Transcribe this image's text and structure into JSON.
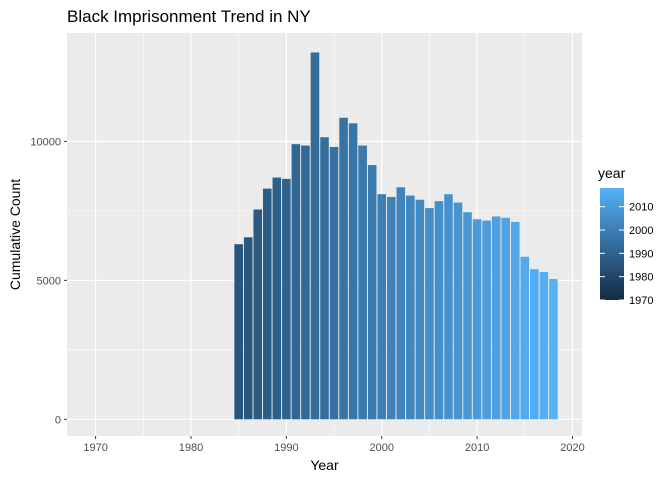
{
  "chart_data": {
    "type": "bar",
    "title": "Black Imprisonment Trend in NY",
    "xlabel": "Year",
    "ylabel": "Cumulative Count",
    "xlim": [
      1967,
      2021
    ],
    "ylim": [
      -600,
      13900
    ],
    "x_ticks": [
      1970,
      1980,
      1990,
      2000,
      2010,
      2020
    ],
    "y_ticks": [
      0,
      5000,
      10000
    ],
    "y_tick_labels": [
      "0",
      "5000",
      "10000"
    ],
    "grid": true,
    "panel_background": "#ebebeb",
    "legend": {
      "title": "year",
      "position": "right",
      "range": [
        1970,
        2018
      ],
      "ticks": [
        1970,
        1980,
        1990,
        2000,
        2010
      ],
      "color_low": "#132b43",
      "color_high": "#56b1f7"
    },
    "x": [
      1985,
      1986,
      1987,
      1988,
      1989,
      1990,
      1991,
      1992,
      1993,
      1994,
      1995,
      1996,
      1997,
      1998,
      1999,
      2000,
      2001,
      2002,
      2003,
      2004,
      2005,
      2006,
      2007,
      2008,
      2009,
      2010,
      2011,
      2012,
      2013,
      2014,
      2015,
      2016,
      2017,
      2018
    ],
    "values": [
      6300,
      6550,
      7550,
      8300,
      8700,
      8650,
      9900,
      9850,
      13200,
      10150,
      9800,
      10850,
      10650,
      9850,
      9150,
      8100,
      8000,
      8350,
      8050,
      7900,
      7600,
      7850,
      8100,
      7800,
      7450,
      7200,
      7150,
      7300,
      7250,
      7100,
      5850,
      5400,
      5300,
      5050
    ]
  }
}
